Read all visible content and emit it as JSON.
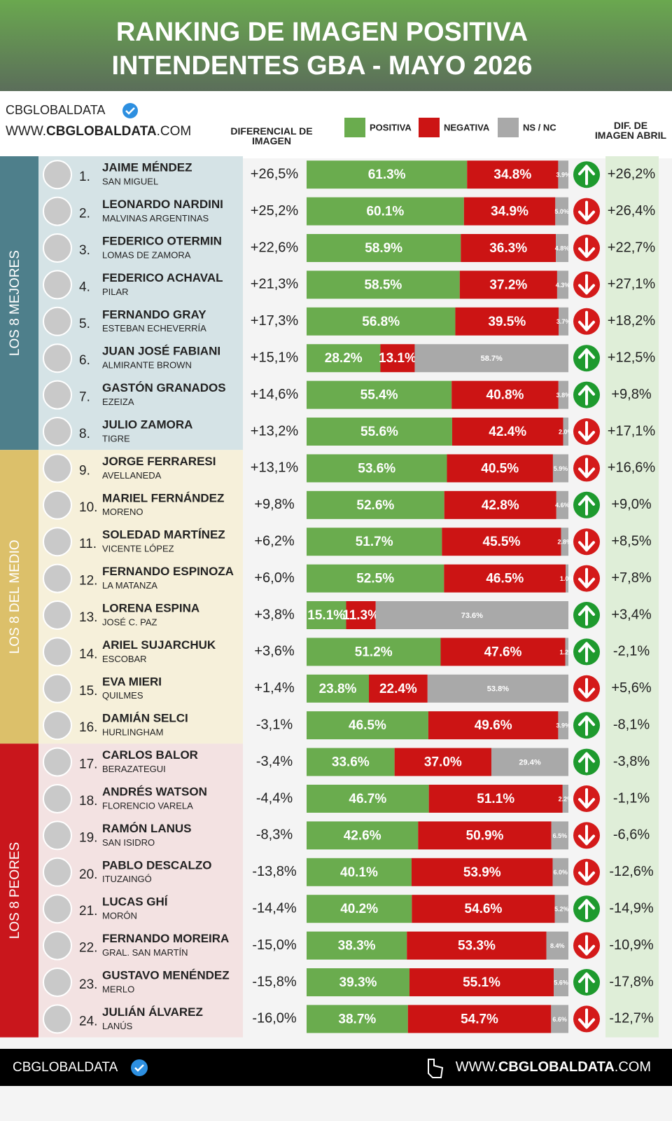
{
  "header": {
    "title": "RANKING DE IMAGEN POSITIVA",
    "subtitle": "INTENDENTES GBA - MAYO 2026"
  },
  "brand": {
    "name": "CBGLOBALDATA",
    "url": [
      "WWW.",
      "CBGLOBALDATA",
      ".COM"
    ]
  },
  "footer": {
    "name": "CBGLOBALDATA",
    "url": [
      "WWW.",
      "CBGLOBALDATA",
      ".COM"
    ]
  },
  "chart_data": {
    "type": "bar",
    "orientation": "horizontal",
    "stacked": true,
    "xlim": [
      0,
      100
    ],
    "ranks": [
      "1.",
      "2.",
      "3.",
      "4.",
      "5.",
      "6.",
      "7.",
      "8.",
      "9.",
      "10.",
      "11.",
      "12.",
      "13.",
      "14.",
      "15.",
      "16.",
      "17.",
      "18.",
      "19.",
      "20.",
      "21.",
      "22.",
      "23.",
      "24."
    ],
    "categories": [
      "JAIME MÉNDEZ",
      "LEONARDO NARDINI",
      "FEDERICO OTERMIN",
      "FEDERICO ACHAVAL",
      "FERNANDO GRAY",
      "JUAN JOSÉ FABIANI",
      "GASTÓN GRANADOS",
      "JULIO ZAMORA",
      "JORGE FERRARESI",
      "MARIEL FERNÁNDEZ",
      "SOLEDAD MARTÍNEZ",
      "FERNANDO ESPINOZA",
      "LORENA ESPINA",
      "ARIEL SUJARCHUK",
      "EVA MIERI",
      "DAMIÁN SELCI",
      "CARLOS BALOR",
      "ANDRÉS WATSON",
      "RAMÓN LANUS",
      "PABLO DESCALZO",
      "LUCAS GHÍ",
      "FERNANDO MOREIRA",
      "GUSTAVO MENÉNDEZ",
      "JULIÁN ÁLVAREZ"
    ],
    "districts": [
      "SAN MIGUEL",
      "MALVINAS ARGENTINAS",
      "LOMAS DE ZAMORA",
      "PILAR",
      "ESTEBAN ECHEVERRÍA",
      "ALMIRANTE BROWN",
      "EZEIZA",
      "TIGRE",
      "AVELLANEDA",
      "MORENO",
      "VICENTE LÓPEZ",
      "LA MATANZA",
      "JOSÉ C. PAZ",
      "ESCOBAR",
      "QUILMES",
      "HURLINGHAM",
      "BERAZATEGUI",
      "FLORENCIO VARELA",
      "SAN ISIDRO",
      "ITUZAINGÓ",
      "MORÓN",
      "GRAL. SAN MARTÍN",
      "MERLO",
      "LANÚS"
    ],
    "groups": [
      {
        "label": "LOS 8 MEJORES",
        "color": "#4e7f8b",
        "background": "#d5e3e6"
      },
      {
        "label": "LOS 8 DEL MEDIO",
        "color": "#dcc06a",
        "background": "#f6f0da"
      },
      {
        "label": "LOS 8 PEORES",
        "color": "#c9161c",
        "background": "#f3e2e2"
      }
    ],
    "series": [
      {
        "name": "POSITIVA",
        "color": "#6aac4e",
        "values": [
          61.3,
          60.1,
          58.9,
          58.5,
          56.8,
          28.2,
          55.4,
          55.6,
          53.6,
          52.6,
          51.7,
          52.5,
          15.1,
          51.2,
          23.8,
          46.5,
          33.6,
          46.7,
          42.6,
          40.1,
          40.2,
          38.3,
          39.3,
          38.7
        ],
        "value_labels": [
          "61.3%",
          "60.1%",
          "58.9%",
          "58.5%",
          "56.8%",
          "28.2%",
          "55.4%",
          "55.6%",
          "53.6%",
          "52.6%",
          "51.7%",
          "52.5%",
          "15.1%",
          "51.2%",
          "23.8%",
          "46.5%",
          "33.6%",
          "46.7%",
          "42.6%",
          "40.1%",
          "40.2%",
          "38.3%",
          "39.3%",
          "38.7%"
        ]
      },
      {
        "name": "NEGATIVA",
        "color": "#cc1414",
        "values": [
          34.8,
          34.9,
          36.3,
          37.2,
          39.5,
          13.1,
          40.8,
          42.4,
          40.5,
          42.8,
          45.5,
          46.5,
          11.3,
          47.6,
          22.4,
          49.6,
          37.0,
          51.1,
          50.9,
          53.9,
          54.6,
          53.3,
          55.1,
          54.7
        ],
        "value_labels": [
          "34.8%",
          "34.9%",
          "36.3%",
          "37.2%",
          "39.5%",
          "13.1%",
          "40.8%",
          "42.4%",
          "40.5%",
          "42.8%",
          "45.5%",
          "46.5%",
          "11.3%",
          "47.6%",
          "22.4%",
          "49.6%",
          "37.0%",
          "51.1%",
          "50.9%",
          "53.9%",
          "54.6%",
          "53.3%",
          "55.1%",
          "54.7%"
        ]
      },
      {
        "name": "NS / NC",
        "color": "#a9a9a9",
        "values": [
          3.9,
          5.0,
          4.8,
          4.3,
          3.7,
          58.7,
          3.8,
          2.0,
          5.9,
          4.6,
          2.8,
          1.0,
          73.6,
          1.2,
          53.8,
          3.9,
          29.4,
          2.2,
          6.5,
          6.0,
          5.2,
          8.4,
          5.6,
          6.6
        ],
        "value_labels": [
          "3.9%",
          "5.0%",
          "4.8%",
          "4.3%",
          "3.7%",
          "58.7%",
          "3.8%",
          "2.0%",
          "5.9%",
          "4.6%",
          "2.8%",
          "1.0%",
          "73.6%",
          "1.2%",
          "53.8%",
          "3.9%",
          "29.4%",
          "2.2%",
          "6.5%",
          "6.0%",
          "5.2%",
          "8.4%",
          "5.6%",
          "6.6%"
        ]
      }
    ],
    "differential": {
      "title": "DIFERENCIAL DE IMAGEN",
      "values": [
        26.5,
        25.2,
        22.6,
        21.3,
        17.3,
        15.1,
        14.6,
        13.2,
        13.1,
        9.8,
        6.2,
        6.0,
        3.8,
        3.6,
        1.4,
        -3.1,
        -3.4,
        -4.4,
        -8.3,
        -13.8,
        -14.4,
        -15.0,
        -15.8,
        -16.0
      ],
      "value_labels": [
        "+26,5%",
        "+25,2%",
        "+22,6%",
        "+21,3%",
        "+17,3%",
        "+15,1%",
        "+14,6%",
        "+13,2%",
        "+13,1%",
        "+9,8%",
        "+6,2%",
        "+6,0%",
        "+3,8%",
        "+3,6%",
        "+1,4%",
        "-3,1%",
        "-3,4%",
        "-4,4%",
        "-8,3%",
        "-13,8%",
        "-14,4%",
        "-15,0%",
        "-15,8%",
        "-16,0%"
      ]
    },
    "april": {
      "title": "DIF. DE IMAGEN ABRIL",
      "values": [
        26.2,
        26.4,
        22.7,
        27.1,
        18.2,
        12.5,
        9.8,
        17.1,
        16.6,
        9.0,
        8.5,
        7.8,
        3.4,
        -2.1,
        5.6,
        -8.1,
        -3.8,
        -1.1,
        -6.6,
        -12.6,
        -14.9,
        -10.9,
        -17.8,
        -12.7
      ],
      "value_labels": [
        "+26,2%",
        "+26,4%",
        "+22,7%",
        "+27,1%",
        "+18,2%",
        "+12,5%",
        "+9,8%",
        "+17,1%",
        "+16,6%",
        "+9,0%",
        "+8,5%",
        "+7,8%",
        "+3,4%",
        "-2,1%",
        "+5,6%",
        "-8,1%",
        "-3,8%",
        "-1,1%",
        "-6,6%",
        "-12,6%",
        "-14,9%",
        "-10,9%",
        "-17,8%",
        "-12,7%"
      ]
    },
    "trend": [
      "up",
      "down",
      "down",
      "down",
      "down",
      "up",
      "up",
      "down",
      "down",
      "up",
      "down",
      "down",
      "up",
      "up",
      "down",
      "up",
      "up",
      "down",
      "down",
      "down",
      "up",
      "down",
      "up",
      "down"
    ],
    "trend_colors": {
      "up": "#1e9a2e",
      "down": "#d41a1a"
    }
  }
}
